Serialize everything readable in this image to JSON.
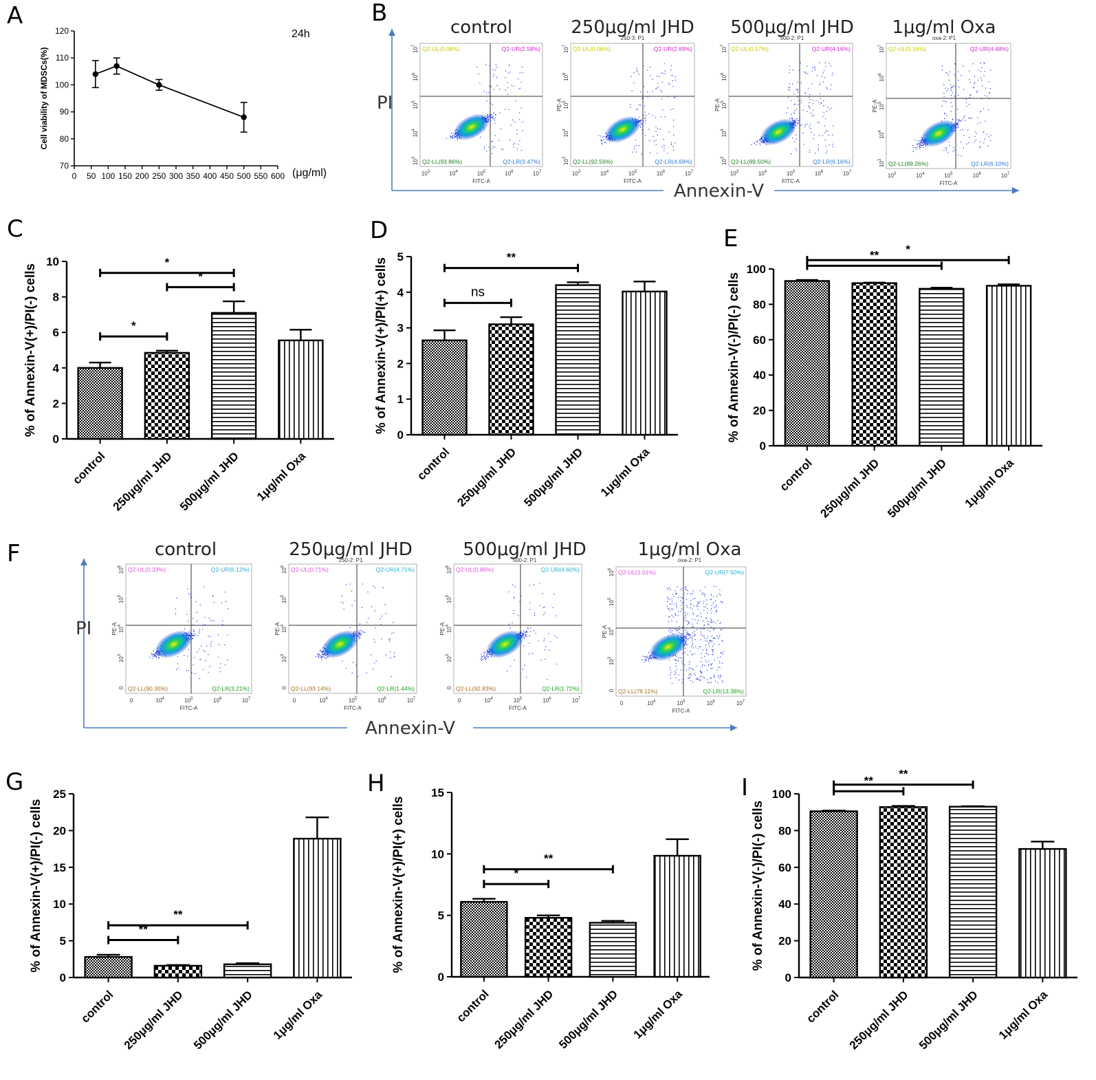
{
  "panel_labels": [
    "A",
    "B",
    "C",
    "D",
    "E",
    "F",
    "G",
    "H",
    "I"
  ],
  "colors": {
    "axis_arrow": "#4a7cc4",
    "quad_ul": "#c8c800",
    "quad_ur": "#d020d0",
    "quad_ll": "#208020",
    "quad_lr": "#2a7bd0",
    "quad_ul_f": "#e050e0",
    "quad_ur_f": "#20b0d0",
    "quad_ll_f": "#a07020",
    "quad_lr_f": "#20a020"
  },
  "panelA_extra": {
    "time_label": "24h",
    "unit_label": "(μg/ml)"
  },
  "flow_B": {
    "ylabel": "PI",
    "xlabel": "Annexin-V",
    "pe_label": "PE-A",
    "fitc_label": "FITC-A",
    "x_ticks": [
      "10",
      "10",
      "10",
      "10",
      "10"
    ],
    "x_exps": [
      "3",
      "4",
      "5",
      "6",
      "7"
    ],
    "y_ticks": [
      "10",
      "10",
      "10",
      "10",
      "10"
    ],
    "y_exps": [
      "3",
      "4",
      "5",
      "6",
      "7"
    ],
    "plots": [
      {
        "title": "control",
        "sub": "",
        "ul": "Q2-UL(0.08%)",
        "ur": "Q2-UR(2.58%)",
        "ll": "Q2-LL(93.86%)",
        "lr": "Q2-LR(3.47%)"
      },
      {
        "title": "250μg/ml JHD",
        "sub": "250-3: P1",
        "ul": "Q2-UL(0.06%)",
        "ur": "Q2-UR(2.69%)",
        "ll": "Q2-LL(92.56%)",
        "lr": "Q2-LR(4.69%)"
      },
      {
        "title": "500μg/ml JHD",
        "sub": "500-2: P1",
        "ul": "Q2-UL(0.17%)",
        "ur": "Q2-UR(4.16%)",
        "ll": "Q2-LL(89.50%)",
        "lr": "Q2-LR(6.16%)"
      },
      {
        "title": "1μg/ml Oxa",
        "sub": "oxa-2: P1",
        "ul": "Q2-UL(0.16%)",
        "ur": "Q2-UR(4.48%)",
        "ll": "Q2-LL(89.26%)",
        "lr": "Q2-LR(6.10%)"
      }
    ]
  },
  "flow_F": {
    "ylabel": "PI",
    "xlabel": "Annexin-V",
    "pe_label": "PE-A",
    "fitc_label": "FITC-A",
    "x_ticks": [
      "0",
      "10",
      "10",
      "10",
      "10"
    ],
    "x_exps": [
      "",
      "4",
      "5",
      "6",
      "7"
    ],
    "y_ticks": [
      "0",
      "10",
      "10",
      "10",
      "10"
    ],
    "y_exps": [
      "",
      "3",
      "4",
      "5",
      "6"
    ],
    "plots": [
      {
        "title": "control",
        "sub": "",
        "ul": "Q2-UL(0.33%)",
        "ur": "Q2-UR(6.12%)",
        "ll": "Q2-LL(90.35%)",
        "lr": "Q2-LR(3.21%)"
      },
      {
        "title": "250μg/ml JHD",
        "sub": "250-2: P1",
        "ul": "Q2-UL(0.71%)",
        "ur": "Q2-UR(4.71%)",
        "ll": "Q2-LL(93.14%)",
        "lr": "Q2-LR(1.44%)"
      },
      {
        "title": "500μg/ml JHD",
        "sub": "500-2: P1",
        "ul": "Q2-UL(0.86%)",
        "ur": "Q2-UR(4.60%)",
        "ll": "Q2-LL(92.83%)",
        "lr": "Q2-LR(1.72%)"
      },
      {
        "title": "1μg/ml Oxa",
        "sub": "oxa-2: P1",
        "ul": "Q2-UL(1.01%)",
        "ur": "Q2-UR(7.50%)",
        "ll": "Q2-LL(78.11%)",
        "lr": "Q2-LR(13.38%)"
      }
    ]
  },
  "chart_data": [
    {
      "id": "A",
      "type": "line",
      "title": "",
      "xlabel": "",
      "ylabel": "Cell viability of MDSCs(%)",
      "x": [
        62.5,
        125,
        250,
        500
      ],
      "y": [
        104,
        107,
        100,
        88
      ],
      "err": [
        5,
        3,
        2,
        5.5
      ],
      "xlim": [
        0,
        600
      ],
      "ylim": [
        70,
        120
      ],
      "x_ticks": [
        "0",
        "50",
        "100",
        "150",
        "200",
        "250",
        "300",
        "350",
        "400",
        "450",
        "500",
        "550",
        "600"
      ],
      "y_ticks": [
        "70",
        "80",
        "90",
        "100",
        "110",
        "120"
      ]
    },
    {
      "id": "C",
      "type": "bar",
      "ylabel": "% of Annexin-V(+)/PI(-) cells",
      "ylim": [
        0,
        10
      ],
      "y_ticks": [
        "0",
        "2",
        "4",
        "6",
        "8",
        "10"
      ],
      "categories": [
        "control",
        "250μg/ml JHD",
        "500μg/ml JHD",
        "1μg/ml Oxa"
      ],
      "values": [
        4.0,
        4.85,
        7.1,
        5.55
      ],
      "errors": [
        0.3,
        0.12,
        0.65,
        0.6
      ],
      "significance": [
        {
          "from": 0,
          "to": 2,
          "label": "*"
        },
        {
          "from": 1,
          "to": 2,
          "label": "*"
        },
        {
          "from": 0,
          "to": 1,
          "label": "*"
        }
      ]
    },
    {
      "id": "D",
      "type": "bar",
      "ylabel": "% of Annexin-V(+)/PI(+) cells",
      "ylim": [
        0,
        5
      ],
      "y_ticks": [
        "0",
        "1",
        "2",
        "3",
        "4",
        "5"
      ],
      "categories": [
        "control",
        "250μg/ml JHD",
        "500μg/ml JHD",
        "1μg/ml Oxa"
      ],
      "values": [
        2.65,
        3.1,
        4.2,
        4.02
      ],
      "errors": [
        0.28,
        0.2,
        0.08,
        0.28
      ],
      "significance": [
        {
          "from": 0,
          "to": 2,
          "label": "**"
        },
        {
          "from": 0,
          "to": 1,
          "label": "ns"
        }
      ]
    },
    {
      "id": "E",
      "type": "bar",
      "ylabel": "% of Annexin-V(-)/PI(-) cells",
      "ylim": [
        0,
        100
      ],
      "y_ticks": [
        "0",
        "20",
        "40",
        "60",
        "80",
        "100"
      ],
      "categories": [
        "control",
        "250μg/ml JHD",
        "500μg/ml JHD",
        "1μg/ml Oxa"
      ],
      "values": [
        93.2,
        92.0,
        88.8,
        90.5
      ],
      "errors": [
        0.6,
        0.3,
        0.6,
        0.8
      ],
      "significance": [
        {
          "from": 0,
          "to": 3,
          "label": "*"
        },
        {
          "from": 0,
          "to": 2,
          "label": "**"
        }
      ]
    },
    {
      "id": "G",
      "type": "bar",
      "ylabel": "% of Annexin-V(+)/PI(-) cells",
      "ylim": [
        0,
        25
      ],
      "y_ticks": [
        "0",
        "5",
        "10",
        "15",
        "20",
        "25"
      ],
      "categories": [
        "control",
        "250μg/ml JHD",
        "500μg/ml JHD",
        "1μg/ml Oxa"
      ],
      "values": [
        2.8,
        1.6,
        1.8,
        18.9
      ],
      "errors": [
        0.3,
        0.1,
        0.15,
        2.9
      ],
      "significance": [
        {
          "from": 0,
          "to": 2,
          "label": "**"
        },
        {
          "from": 0,
          "to": 1,
          "label": "**"
        }
      ]
    },
    {
      "id": "H",
      "type": "bar",
      "ylabel": "% of Annexin-V(+)/PI(+) cells",
      "ylim": [
        0,
        15
      ],
      "y_ticks": [
        "0",
        "5",
        "10",
        "15"
      ],
      "categories": [
        "control",
        "250μg/ml JHD",
        "500μg/ml JHD",
        "1μg/ml Oxa"
      ],
      "values": [
        6.1,
        4.8,
        4.4,
        9.85
      ],
      "errors": [
        0.25,
        0.2,
        0.15,
        1.35
      ],
      "significance": [
        {
          "from": 0,
          "to": 2,
          "label": "**"
        },
        {
          "from": 0,
          "to": 1,
          "label": "*"
        }
      ]
    },
    {
      "id": "I",
      "type": "bar",
      "ylabel": "% of Annexin-V(-)/PI(-) cells",
      "ylim": [
        0,
        100
      ],
      "y_ticks": [
        "0",
        "20",
        "40",
        "60",
        "80",
        "100"
      ],
      "categories": [
        "control",
        "250μg/ml JHD",
        "500μg/ml JHD",
        "1μg/ml Oxa"
      ],
      "values": [
        90.5,
        92.8,
        93.0,
        70.0
      ],
      "errors": [
        0.4,
        0.6,
        0.3,
        4.0
      ],
      "significance": [
        {
          "from": 0,
          "to": 2,
          "label": "**"
        },
        {
          "from": 0,
          "to": 1,
          "label": "**"
        }
      ]
    }
  ]
}
